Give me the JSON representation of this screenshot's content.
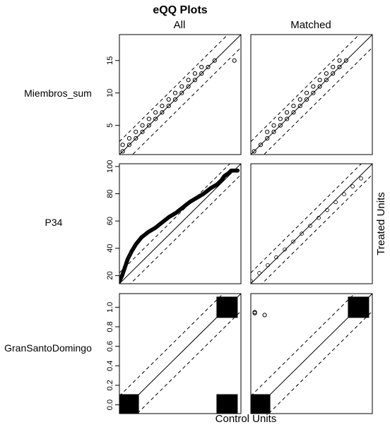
{
  "chart_data": {
    "type": "scatter",
    "title": "eQQ Plots",
    "columns": [
      "All",
      "Matched"
    ],
    "xlabel": "Control Units",
    "ylabel": "Treated Units",
    "rows": [
      {
        "label": "Miembros_sum",
        "ylim": [
          0.5,
          19
        ],
        "yticks": [
          5,
          10,
          15
        ],
        "ytick_labels": [
          "5",
          "10",
          "15"
        ],
        "panels": {
          "All": [
            [
              1,
              1
            ],
            [
              1,
              2
            ],
            [
              2,
              2
            ],
            [
              2,
              3
            ],
            [
              3,
              3
            ],
            [
              3,
              4
            ],
            [
              4,
              4
            ],
            [
              4,
              5
            ],
            [
              5,
              5
            ],
            [
              5,
              6
            ],
            [
              6,
              6
            ],
            [
              6,
              7
            ],
            [
              7,
              7
            ],
            [
              7,
              8
            ],
            [
              8,
              8
            ],
            [
              8,
              9
            ],
            [
              9,
              9
            ],
            [
              9,
              10
            ],
            [
              10,
              10
            ],
            [
              10,
              11
            ],
            [
              11,
              11
            ],
            [
              11,
              12
            ],
            [
              12,
              12
            ],
            [
              12,
              13
            ],
            [
              13,
              13
            ],
            [
              13,
              14
            ],
            [
              14,
              14
            ],
            [
              15,
              15
            ],
            [
              18,
              15
            ]
          ],
          "Matched": [
            [
              1,
              1
            ],
            [
              2,
              2
            ],
            [
              3,
              3
            ],
            [
              3,
              4
            ],
            [
              4,
              4
            ],
            [
              4,
              5
            ],
            [
              5,
              5
            ],
            [
              5,
              6
            ],
            [
              6,
              6
            ],
            [
              6,
              7
            ],
            [
              7,
              7
            ],
            [
              7,
              8
            ],
            [
              8,
              8
            ],
            [
              8,
              9
            ],
            [
              9,
              9
            ],
            [
              9,
              10
            ],
            [
              10,
              10
            ],
            [
              10,
              11
            ],
            [
              11,
              11
            ],
            [
              11,
              12
            ],
            [
              12,
              12
            ],
            [
              12,
              13
            ],
            [
              13,
              13
            ],
            [
              13,
              14
            ],
            [
              14,
              14
            ],
            [
              14,
              15
            ],
            [
              15,
              15
            ]
          ]
        }
      },
      {
        "label": "P34",
        "ylim": [
          14,
          102
        ],
        "yticks": [
          20,
          40,
          60,
          80,
          100
        ],
        "ytick_labels": [
          "20",
          "40",
          "60",
          "80",
          "100"
        ],
        "panels": {
          "All": {
            "x": [
              14,
              16,
              18,
              20,
              23,
              26,
              30,
              35,
              40,
              45,
              50,
              55,
              60,
              65,
              70,
              75,
              80,
              85,
              88,
              90,
              93,
              95,
              100
            ],
            "y": [
              16,
              20,
              26,
              32,
              38,
              43,
              48,
              52,
              55,
              59,
              63,
              66,
              70,
              74,
              77,
              80,
              84,
              87,
              90,
              93,
              95,
              97,
              97
            ]
          },
          "Matched": {
            "x": [
              14,
              100
            ],
            "y": [
              16,
              97
            ]
          }
        }
      },
      {
        "label": "GranSantoDomingo",
        "ylim": [
          -0.09,
          1.14
        ],
        "yticks": [
          0.0,
          0.2,
          0.4,
          0.6,
          0.8,
          1.0
        ],
        "ytick_labels": [
          "0.0",
          "0.2",
          "0.4",
          "0.6",
          "0.8",
          "1.0"
        ],
        "panels": {
          "All": {
            "clusters": [
              [
                0,
                0
              ],
              [
                1,
                1
              ],
              [
                1,
                0
              ]
            ]
          },
          "Matched": {
            "clusters": [
              [
                0,
                0
              ],
              [
                1,
                1
              ]
            ],
            "points": [
              [
                -0.05,
                0.95
              ],
              [
                -0.05,
                0.94
              ],
              [
                0.05,
                0.92
              ]
            ]
          }
        }
      }
    ]
  }
}
